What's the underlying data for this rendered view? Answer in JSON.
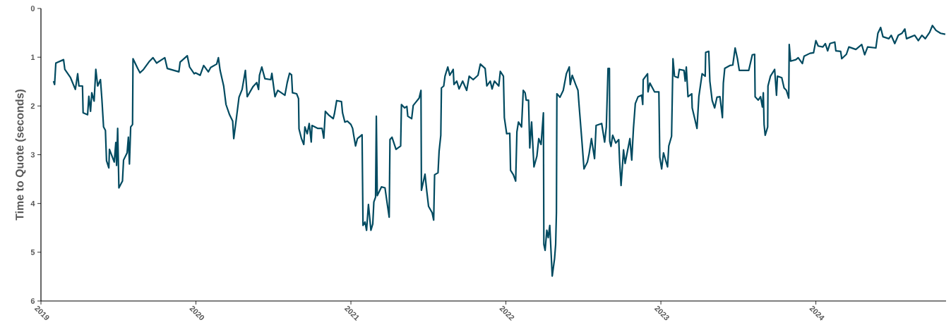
{
  "chart_data": {
    "type": "line",
    "ylabel": "Time to Quote (seconds)",
    "xlim": [
      2019,
      2024.84
    ],
    "xticks": [
      2019,
      2020,
      2021,
      2022,
      2023,
      2024
    ],
    "ylim": [
      6,
      0
    ],
    "yticks": [
      0,
      1,
      2,
      3,
      4,
      5,
      6
    ],
    "grid": false,
    "marker": "none",
    "line_style": "solid",
    "series": [
      {
        "color": "#004a60",
        "x": [
          2019.081,
          2019.088,
          2019.096,
          2019.146,
          2019.154,
          2019.191,
          2019.222,
          2019.237,
          2019.245,
          2019.268,
          2019.272,
          2019.301,
          2019.309,
          2019.32,
          2019.328,
          2019.343,
          2019.354,
          2019.366,
          2019.384,
          2019.393,
          2019.404,
          2019.416,
          2019.423,
          2019.438,
          2019.442,
          2019.473,
          2019.483,
          2019.488,
          2019.495,
          2019.503,
          2019.526,
          2019.533,
          2019.556,
          2019.564,
          2019.571,
          2019.579,
          2019.591,
          2019.594,
          2019.624,
          2019.639,
          2019.662,
          2019.701,
          2019.723,
          2019.746,
          2019.799,
          2019.815,
          2019.89,
          2019.898,
          2019.944,
          2019.959,
          2019.989,
          2019.997,
          2020.027,
          2020.05,
          2020.08,
          2020.095,
          2020.134,
          2020.145,
          2020.156,
          2020.179,
          2020.194,
          2020.217,
          2020.237,
          2020.244,
          2020.258,
          2020.278,
          2020.298,
          2020.319,
          2020.331,
          2020.369,
          2020.392,
          2020.404,
          2020.41,
          2020.425,
          2020.445,
          2020.483,
          2020.49,
          2020.51,
          2020.528,
          2020.574,
          2020.589,
          2020.604,
          2020.617,
          2020.623,
          2020.65,
          2020.662,
          2020.665,
          2020.681,
          2020.696,
          2020.703,
          2020.718,
          2020.731,
          2020.744,
          2020.749,
          2020.787,
          2020.814,
          2020.825,
          2020.835,
          2020.855,
          2020.886,
          2020.893,
          2020.908,
          2020.939,
          2020.946,
          2020.961,
          2020.977,
          2021.0,
          2021.011,
          2021.018,
          2021.03,
          2021.042,
          2021.072,
          2021.078,
          2021.091,
          2021.101,
          2021.113,
          2021.129,
          2021.141,
          2021.148,
          2021.159,
          2021.164,
          2021.17,
          2021.197,
          2021.22,
          2021.235,
          2021.247,
          2021.252,
          2021.265,
          2021.291,
          2021.321,
          2021.326,
          2021.346,
          2021.361,
          2021.367,
          2021.392,
          2021.402,
          2021.422,
          2021.44,
          2021.452,
          2021.455,
          2021.478,
          2021.49,
          2021.501,
          2021.524,
          2021.534,
          2021.54,
          2021.562,
          2021.569,
          2021.58,
          2021.584,
          2021.599,
          2021.607,
          2021.625,
          2021.638,
          2021.66,
          2021.665,
          2021.683,
          2021.698,
          2021.721,
          2021.747,
          2021.763,
          2021.789,
          2021.82,
          2021.835,
          2021.866,
          2021.877,
          2021.899,
          2021.911,
          2021.926,
          2021.954,
          2021.964,
          2021.984,
          2021.99,
          2022.005,
          2022.025,
          2022.03,
          2022.048,
          2022.063,
          2022.071,
          2022.081,
          2022.101,
          2022.112,
          2022.124,
          2022.131,
          2022.146,
          2022.154,
          2022.166,
          2022.181,
          2022.2,
          2022.212,
          2022.227,
          2022.242,
          2022.245,
          2022.253,
          2022.264,
          2022.273,
          2022.283,
          2022.299,
          2022.314,
          2022.321,
          2022.326,
          2022.329,
          2022.349,
          2022.37,
          2022.39,
          2022.409,
          2022.415,
          2022.428,
          2022.45,
          2022.465,
          2022.473,
          2022.488,
          2022.504,
          2022.526,
          2022.537,
          2022.552,
          2022.572,
          2022.582,
          2022.618,
          2022.637,
          2022.648,
          2022.659,
          2022.668,
          2022.67,
          2022.678,
          2022.689,
          2022.709,
          2022.728,
          2022.734,
          2022.743,
          2022.759,
          2022.769,
          2022.8,
          2022.812,
          2022.823,
          2022.835,
          2022.853,
          2022.876,
          2022.883,
          2022.886,
          2022.914,
          2022.917,
          2022.929,
          2022.959,
          2022.987,
          2022.993,
          2023.005,
          2023.017,
          2023.043,
          2023.051,
          2023.069,
          2023.078,
          2023.088,
          2023.111,
          2023.119,
          2023.149,
          2023.157,
          2023.164,
          2023.175,
          2023.199,
          2023.202,
          2023.217,
          2023.233,
          2023.245,
          2023.266,
          2023.286,
          2023.289,
          2023.309,
          2023.316,
          2023.331,
          2023.347,
          2023.362,
          2023.381,
          2023.397,
          2023.403,
          2023.412,
          2023.445,
          2023.464,
          2023.479,
          2023.494,
          2023.506,
          2023.567,
          2023.59,
          2023.605,
          2023.608,
          2023.628,
          2023.643,
          2023.655,
          2023.661,
          2023.666,
          2023.673,
          2023.689,
          2023.691,
          2023.707,
          2023.734,
          2023.746,
          2023.752,
          2023.78,
          2023.795,
          2023.81,
          2023.825,
          2023.828,
          2023.837,
          2023.871,
          2023.886,
          2023.913,
          2023.924,
          2023.962,
          2023.985,
          2024.0,
          2024.015,
          2024.045,
          2024.061,
          2024.076,
          2024.091,
          2024.122,
          2024.129,
          2024.16,
          2024.167,
          2024.197,
          2024.213,
          2024.258,
          2024.296,
          2024.315,
          2024.334,
          2024.387,
          2024.4,
          2024.418,
          2024.433,
          2024.471,
          2024.486,
          2024.509,
          2024.532,
          2024.555,
          2024.574,
          2024.585,
          2024.615,
          2024.638,
          2024.661,
          2024.684,
          2024.706,
          2024.734,
          2024.752,
          2024.775,
          2024.805,
          2024.835
        ],
        "values": [
          1.49,
          1.56,
          1.12,
          1.05,
          1.25,
          1.42,
          1.66,
          1.34,
          1.59,
          1.59,
          2.14,
          2.18,
          1.8,
          2.11,
          1.73,
          1.9,
          1.25,
          1.59,
          1.46,
          1.85,
          2.43,
          2.5,
          3.12,
          3.27,
          2.89,
          3.15,
          2.75,
          3.22,
          2.46,
          3.68,
          3.54,
          3.11,
          2.96,
          2.64,
          3.19,
          2.43,
          2.38,
          1.03,
          1.23,
          1.32,
          1.25,
          1.08,
          1.01,
          1.12,
          1.01,
          1.23,
          1.3,
          1.1,
          0.97,
          1.2,
          1.34,
          1.32,
          1.37,
          1.17,
          1.3,
          1.21,
          1.14,
          1.01,
          1.27,
          1.59,
          1.97,
          2.18,
          2.31,
          2.67,
          2.33,
          1.82,
          1.66,
          1.27,
          1.81,
          1.6,
          1.52,
          1.66,
          1.37,
          1.2,
          1.44,
          1.46,
          1.33,
          1.81,
          1.68,
          1.78,
          1.52,
          1.33,
          1.36,
          1.73,
          1.75,
          1.85,
          2.47,
          2.67,
          2.79,
          2.43,
          2.57,
          2.36,
          2.74,
          2.4,
          2.46,
          2.46,
          2.66,
          2.11,
          2.18,
          2.26,
          2.17,
          1.89,
          1.91,
          2.14,
          2.33,
          2.31,
          2.38,
          2.46,
          2.6,
          2.82,
          2.67,
          2.59,
          4.45,
          4.38,
          4.55,
          4.02,
          4.55,
          4.42,
          3.97,
          3.87,
          2.21,
          3.84,
          3.66,
          3.68,
          4.02,
          4.28,
          2.69,
          2.64,
          2.89,
          2.82,
          1.97,
          2.04,
          2.01,
          2.21,
          2.26,
          1.99,
          1.91,
          1.84,
          1.68,
          3.73,
          3.4,
          3.76,
          4.06,
          4.19,
          4.34,
          3.41,
          3.37,
          2.93,
          2.6,
          1.63,
          1.59,
          1.39,
          1.2,
          1.37,
          1.25,
          1.56,
          1.49,
          1.65,
          1.49,
          1.68,
          1.39,
          1.46,
          1.37,
          1.14,
          1.23,
          1.59,
          1.49,
          1.65,
          1.49,
          1.59,
          1.29,
          1.39,
          2.24,
          2.57,
          2.56,
          3.32,
          3.41,
          3.54,
          2.53,
          2.33,
          2.43,
          1.68,
          1.73,
          1.88,
          1.88,
          2.86,
          2.33,
          3.25,
          3.03,
          2.67,
          2.79,
          2.14,
          4.84,
          4.96,
          4.55,
          4.7,
          4.45,
          5.49,
          5.13,
          4.84,
          4.19,
          1.75,
          1.82,
          1.68,
          1.34,
          1.2,
          1.56,
          1.37,
          1.56,
          1.68,
          2.02,
          2.62,
          3.29,
          3.15,
          2.98,
          2.67,
          3.08,
          2.4,
          2.36,
          2.74,
          2.43,
          1.23,
          1.23,
          2.72,
          2.83,
          2.6,
          2.76,
          2.69,
          3.15,
          3.63,
          2.9,
          3.18,
          2.67,
          3.11,
          2.46,
          1.95,
          1.81,
          1.78,
          1.97,
          1.46,
          1.34,
          1.71,
          1.53,
          1.71,
          1.71,
          3.05,
          3.29,
          2.96,
          3.25,
          2.82,
          2.62,
          1.03,
          1.39,
          1.42,
          1.25,
          1.27,
          1.49,
          1.2,
          1.81,
          1.75,
          2.04,
          2.24,
          2.46,
          1.81,
          1.34,
          1.39,
          0.9,
          0.88,
          1.49,
          1.89,
          2.04,
          1.82,
          1.81,
          2.24,
          1.53,
          1.23,
          1.17,
          1.16,
          0.81,
          1.03,
          1.27,
          1.27,
          0.95,
          0.94,
          1.81,
          1.88,
          1.81,
          2.02,
          1.73,
          2.38,
          2.6,
          2.43,
          1.59,
          1.39,
          1.25,
          1.78,
          1.39,
          1.42,
          1.63,
          1.68,
          1.84,
          0.74,
          1.08,
          1.05,
          1.01,
          1.13,
          0.98,
          0.92,
          0.91,
          0.66,
          0.77,
          0.79,
          0.72,
          0.87,
          0.72,
          0.69,
          0.87,
          0.88,
          1.03,
          0.94,
          0.79,
          0.84,
          0.74,
          0.95,
          0.79,
          0.81,
          0.51,
          0.39,
          0.58,
          0.62,
          0.55,
          0.72,
          0.55,
          0.51,
          0.42,
          0.62,
          0.58,
          0.55,
          0.66,
          0.55,
          0.62,
          0.49,
          0.35,
          0.45,
          0.51,
          0.53
        ]
      }
    ]
  }
}
